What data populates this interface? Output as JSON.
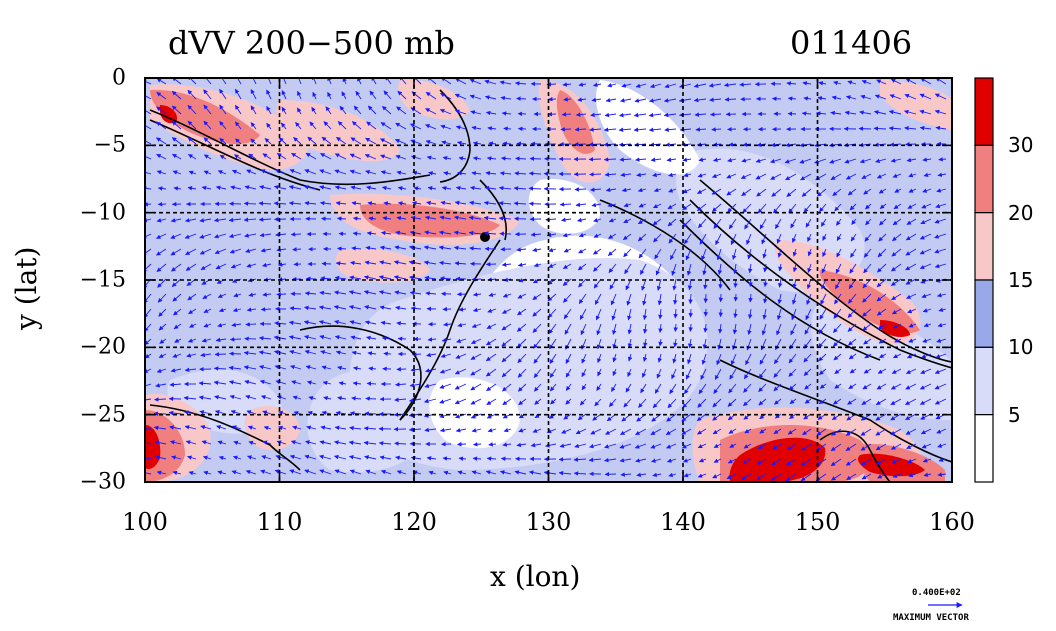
{
  "title": {
    "left": "dVV 200−500 mb",
    "right": "011406"
  },
  "axes": {
    "xlabel": "x (lon)",
    "ylabel": "y (lat)",
    "x_ticks": [
      "100",
      "110",
      "120",
      "130",
      "140",
      "150",
      "160"
    ],
    "y_ticks": [
      "0",
      "−5",
      "−10",
      "−15",
      "−20",
      "−25",
      "−30"
    ]
  },
  "colorbar": {
    "labels": [
      "30",
      "20",
      "15",
      "10",
      "5"
    ],
    "colors": [
      "#e00000",
      "#f08080",
      "#f8c8c8",
      "#98a8e8",
      "#d8dcf8",
      "#ffffff"
    ]
  },
  "vector_key": {
    "value": "0.400E+02",
    "label": "MAXIMUM VECTOR"
  },
  "chart_data": {
    "type": "heatmap",
    "variable": "dVV 200-500 mb",
    "date": "011406",
    "xlim": [
      100,
      160
    ],
    "ylim": [
      -30,
      0
    ],
    "levels": [
      5,
      10,
      15,
      20,
      30
    ],
    "grid": true,
    "arrow_color": "#1a1aff"
  }
}
